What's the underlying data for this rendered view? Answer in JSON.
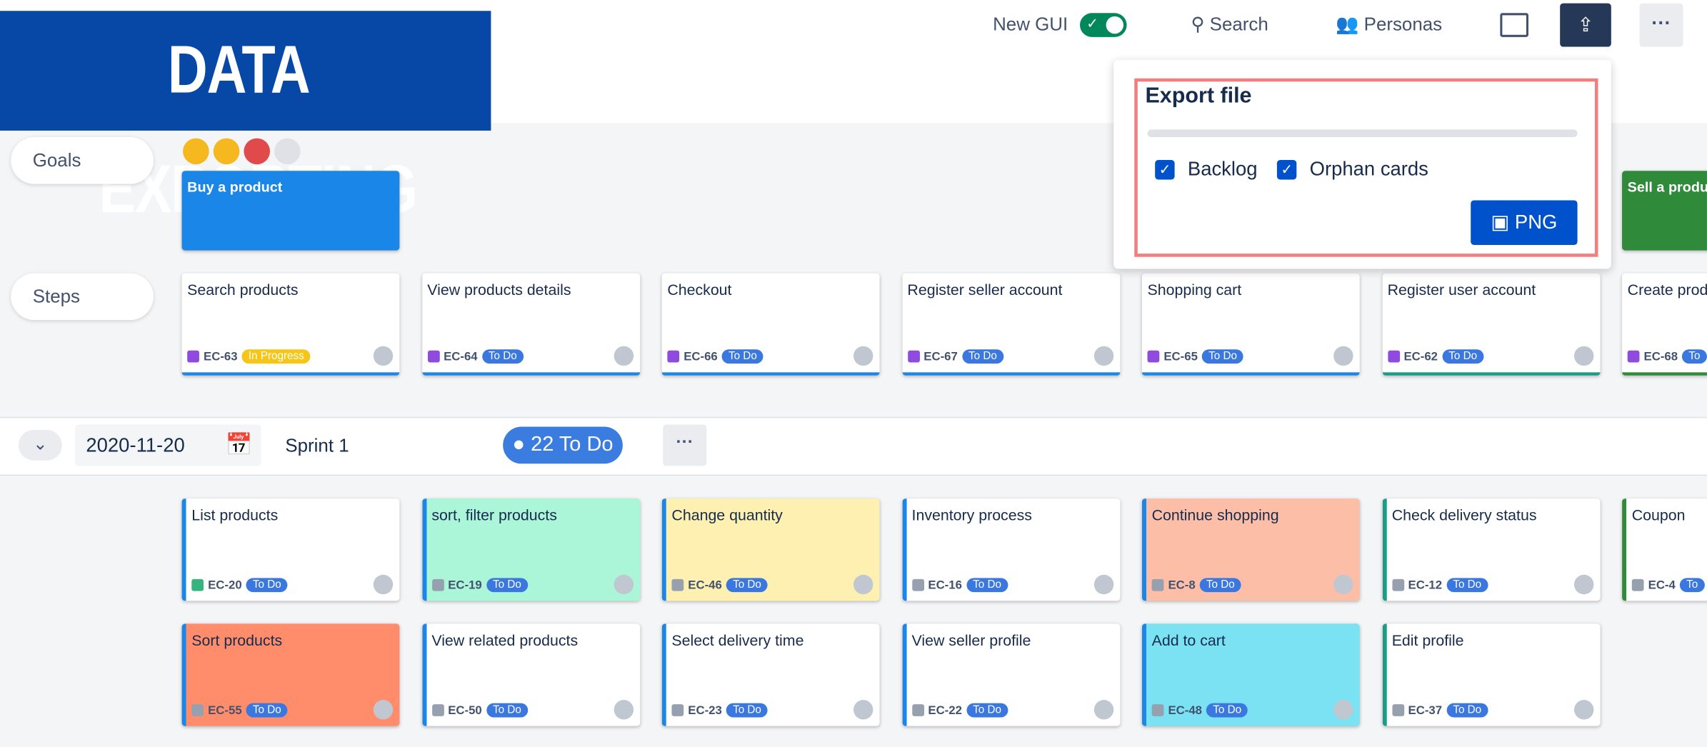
{
  "header": {
    "banner": "DATA EXPORTING",
    "toggle_label": "New GUI",
    "search": "Search",
    "personas": "Personas"
  },
  "export_panel": {
    "title": "Export file",
    "options": [
      "Backlog",
      "Orphan cards"
    ],
    "button": "PNG"
  },
  "goals": {
    "label": "Goals",
    "cards": [
      {
        "title": "Buy a product",
        "color": "#1a86e8",
        "x": 0
      },
      {
        "title": "Sell a produ",
        "color": "#2f8a3a",
        "x": 6
      }
    ]
  },
  "steps": {
    "label": "Steps",
    "cards": [
      {
        "title": "Search products",
        "key": "EC-63",
        "status": "In Progress"
      },
      {
        "title": "View products details",
        "key": "EC-64",
        "status": "To Do"
      },
      {
        "title": "Checkout",
        "key": "EC-66",
        "status": "To Do"
      },
      {
        "title": "Register seller account",
        "key": "EC-67",
        "status": "To Do"
      },
      {
        "title": "Shopping cart",
        "key": "EC-65",
        "status": "To Do"
      },
      {
        "title": "Register user account",
        "key": "EC-62",
        "status": "To Do"
      },
      {
        "title": "Create produ",
        "key": "EC-68",
        "status": "To"
      }
    ]
  },
  "sprint": {
    "date": "2020-11-20",
    "name": "Sprint 1",
    "count": "22 To Do"
  },
  "stories": [
    [
      {
        "title": "List products",
        "key": "EC-20",
        "status": "To Do",
        "bg": "#ffffff",
        "edge": "#1a86e8"
      },
      {
        "title": "sort, filter products",
        "key": "EC-19",
        "status": "To Do",
        "bg": "#abf5d8",
        "edge": "#1a86e8"
      },
      {
        "title": "Change quantity",
        "key": "EC-46",
        "status": "To Do",
        "bg": "#fdf0b1",
        "edge": "#1a86e8"
      },
      {
        "title": "Inventory process",
        "key": "EC-16",
        "status": "To Do",
        "bg": "#ffffff",
        "edge": "#1a86e8"
      },
      {
        "title": "Continue shopping",
        "key": "EC-8",
        "status": "To Do",
        "bg": "#fdbea8",
        "edge": "#1a86e8"
      },
      {
        "title": "Check delivery status",
        "key": "EC-12",
        "status": "To Do",
        "bg": "#ffffff",
        "edge": "#1a9c86"
      },
      {
        "title": "Coupon",
        "key": "EC-4",
        "status": "To",
        "bg": "#ffffff",
        "edge": "#2f8a3a"
      }
    ],
    [
      {
        "title": "Sort products",
        "key": "EC-55",
        "status": "To Do",
        "bg": "#ff8c6b",
        "edge": "#1a86e8"
      },
      {
        "title": "View related products",
        "key": "EC-50",
        "status": "To Do",
        "bg": "#ffffff",
        "edge": "#1a86e8"
      },
      {
        "title": "Select delivery time",
        "key": "EC-23",
        "status": "To Do",
        "bg": "#ffffff",
        "edge": "#1a86e8"
      },
      {
        "title": "View seller profile",
        "key": "EC-22",
        "status": "To Do",
        "bg": "#ffffff",
        "edge": "#1a86e8"
      },
      {
        "title": "Add to cart",
        "key": "EC-48",
        "status": "To Do",
        "bg": "#7ae2f2",
        "edge": "#1a86e8"
      },
      {
        "title": "Edit profile",
        "key": "EC-37",
        "status": "To Do",
        "bg": "#ffffff",
        "edge": "#1a9c86"
      }
    ]
  ]
}
